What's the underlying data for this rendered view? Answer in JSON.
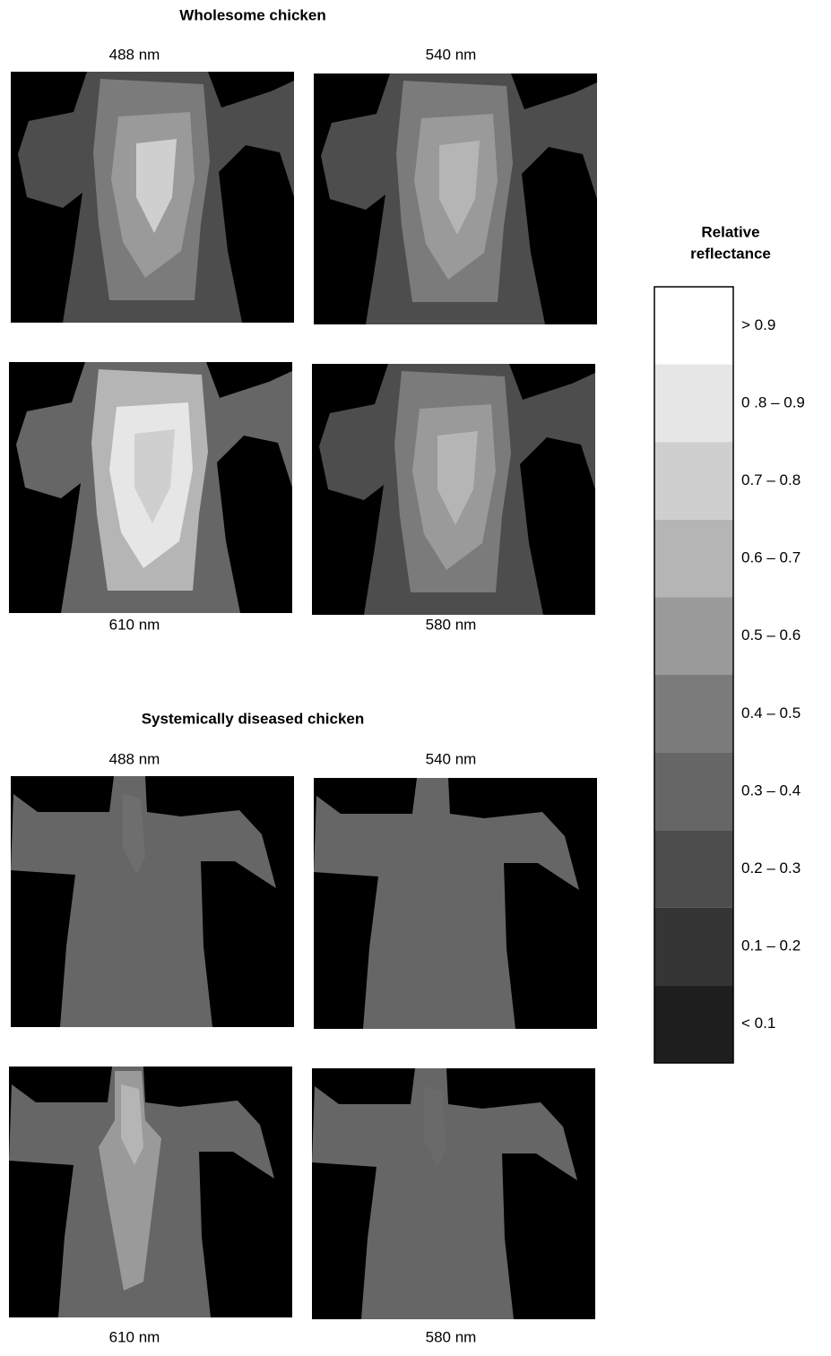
{
  "sections": [
    {
      "title": "Wholesome chicken",
      "panels": [
        {
          "label": "488 nm"
        },
        {
          "label": "540 nm"
        },
        {
          "label": "610 nm"
        },
        {
          "label": "580 nm"
        }
      ]
    },
    {
      "title": "Systemically diseased chicken",
      "panels": [
        {
          "label": "488 nm"
        },
        {
          "label": "540 nm"
        },
        {
          "label": "610 nm"
        },
        {
          "label": "580 nm"
        }
      ]
    }
  ],
  "legend": {
    "title_lines": [
      "Relative",
      "reflectance"
    ],
    "items": [
      {
        "label": "> 0.9",
        "color": "#ffffff"
      },
      {
        "label": "0 .8  – 0.9",
        "color": "#e6e6e6"
      },
      {
        "label": "0.7  – 0.8",
        "color": "#cfcfcf"
      },
      {
        "label": "0.6  – 0.7",
        "color": "#b5b5b5"
      },
      {
        "label": "0.5  – 0.6",
        "color": "#9a9a9a"
      },
      {
        "label": "0.4  – 0.5",
        "color": "#7b7b7b"
      },
      {
        "label": "0.3  – 0.4",
        "color": "#666666"
      },
      {
        "label": "0.2  – 0.3",
        "color": "#4d4d4d"
      },
      {
        "label": "0.1  – 0.2",
        "color": "#353535"
      },
      {
        "label": "< 0.1",
        "color": "#1e1e1e"
      }
    ]
  }
}
